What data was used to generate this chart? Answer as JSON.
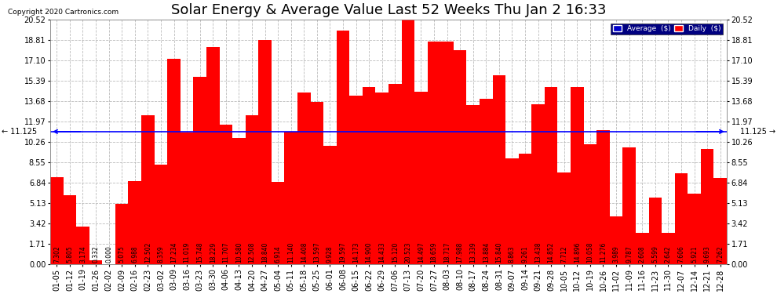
{
  "title": "Solar Energy & Average Value Last 52 Weeks Thu Jan 2 16:33",
  "copyright": "Copyright 2020 Cartronics.com",
  "categories": [
    "01-05",
    "01-12",
    "01-19",
    "01-26",
    "02-02",
    "02-09",
    "02-16",
    "02-23",
    "03-02",
    "03-09",
    "03-16",
    "03-23",
    "03-30",
    "04-06",
    "04-13",
    "04-20",
    "04-27",
    "05-04",
    "05-11",
    "05-18",
    "05-25",
    "06-01",
    "06-08",
    "06-15",
    "06-22",
    "06-29",
    "07-06",
    "07-13",
    "07-20",
    "07-27",
    "08-03",
    "08-10",
    "08-17",
    "08-24",
    "08-31",
    "09-07",
    "09-14",
    "09-21",
    "09-28",
    "10-05",
    "10-12",
    "10-19",
    "10-26",
    "11-02",
    "11-09",
    "11-16",
    "11-23",
    "11-30",
    "12-07",
    "12-14",
    "12-21",
    "12-28"
  ],
  "values": [
    7.302,
    5.805,
    3.174,
    0.332,
    0.0,
    5.075,
    6.988,
    12.502,
    8.359,
    17.234,
    11.019,
    15.748,
    18.229,
    11.707,
    10.58,
    12.508,
    18.84,
    6.914,
    11.14,
    14.408,
    13.597,
    9.928,
    19.597,
    14.173,
    14.9,
    14.433,
    15.12,
    20.523,
    14.497,
    18.659,
    18.717,
    17.988,
    13.339,
    13.884,
    15.84,
    8.863,
    9.261,
    13.438,
    14.852,
    7.712,
    14.896,
    10.058,
    11.276,
    3.989,
    9.787,
    2.608,
    5.599,
    2.642,
    7.606,
    5.921,
    9.693,
    7.262
  ],
  "average_line": 11.125,
  "bar_color": "#FF0000",
  "average_line_color": "#0000FF",
  "average_label": "Average  ($)",
  "daily_label": "Daily  ($)",
  "y_ticks": [
    0.0,
    1.71,
    3.42,
    5.13,
    6.84,
    8.55,
    10.26,
    11.97,
    13.68,
    15.39,
    17.1,
    18.81,
    20.52
  ],
  "background_color": "#FFFFFF",
  "grid_color": "#BBBBBB",
  "title_fontsize": 13,
  "tick_fontsize": 7,
  "annotation_fontsize": 5.5,
  "ylim_max": 20.52
}
